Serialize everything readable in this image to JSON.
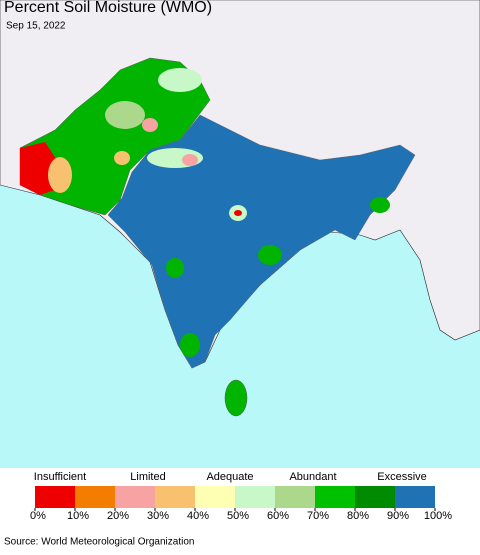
{
  "title": "Percent Soil Moisture (WMO)",
  "date": "Sep 15, 2022",
  "legend": {
    "categories": [
      "Insufficient",
      "Limited",
      "Adequate",
      "Abundant",
      "Excessive"
    ],
    "colors": [
      "#ee0000",
      "#f27d00",
      "#f7a3a3",
      "#f8c170",
      "#ffffb4",
      "#c8f8c8",
      "#acd88c",
      "#00c000",
      "#008a00",
      "#1f72b3"
    ],
    "ticks": [
      {
        "value": 0,
        "label": "0%"
      },
      {
        "value": 10,
        "label": "10%"
      },
      {
        "value": 20,
        "label": "20%"
      },
      {
        "value": 30,
        "label": "30%"
      },
      {
        "value": 40,
        "label": "40%"
      },
      {
        "value": 50,
        "label": "50%"
      },
      {
        "value": 60,
        "label": "60%"
      },
      {
        "value": 70,
        "label": "70%"
      },
      {
        "value": 80,
        "label": "80%"
      },
      {
        "value": 90,
        "label": "90%"
      },
      {
        "value": 100,
        "label": "100%"
      }
    ],
    "range": [
      0,
      100
    ]
  },
  "source": "Source: World Meteorological Organization"
}
